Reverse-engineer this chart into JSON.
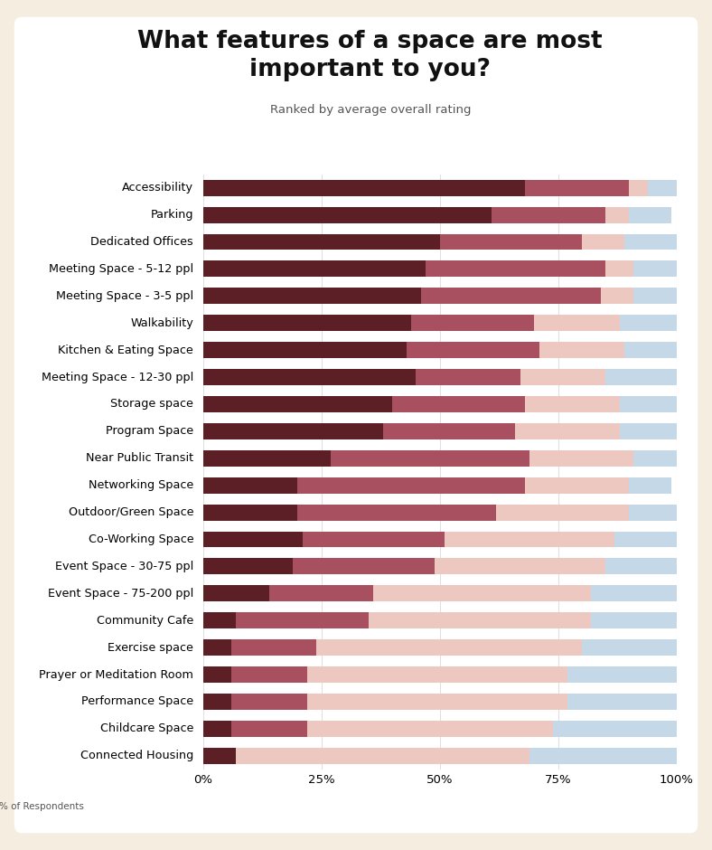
{
  "title": "What features of a space are most\nimportant to you?",
  "subtitle": "Ranked by average overall rating",
  "xlabel": "% of Respondents",
  "categories": [
    "Accessibility",
    "Parking",
    "Dedicated Offices",
    "Meeting Space - 5-12 ppl",
    "Meeting Space - 3-5 ppl",
    "Walkability",
    "Kitchen & Eating Space",
    "Meeting Space - 12-30 ppl",
    "Storage space",
    "Program Space",
    "Near Public Transit",
    "Networking Space",
    "Outdoor/Green Space",
    "Co-Working Space",
    "Event Space - 30-75 ppl",
    "Event Space - 75-200 ppl",
    "Community Cafe",
    "Exercise space",
    "Prayer or Meditation Room",
    "Performance Space",
    "Childcare Space",
    "Connected Housing"
  ],
  "very_important": [
    68,
    61,
    50,
    47,
    46,
    44,
    43,
    45,
    40,
    38,
    27,
    20,
    20,
    21,
    19,
    14,
    7,
    6,
    6,
    6,
    6,
    7
  ],
  "somewhat_important": [
    22,
    24,
    30,
    38,
    38,
    26,
    28,
    22,
    28,
    28,
    42,
    48,
    42,
    30,
    30,
    22,
    28,
    18,
    16,
    16,
    16,
    0
  ],
  "not_important": [
    4,
    5,
    9,
    6,
    7,
    18,
    18,
    18,
    20,
    22,
    22,
    22,
    28,
    36,
    36,
    46,
    47,
    56,
    55,
    55,
    52,
    62
  ],
  "na": [
    6,
    9,
    11,
    9,
    9,
    12,
    11,
    15,
    12,
    12,
    9,
    9,
    10,
    13,
    15,
    18,
    18,
    20,
    23,
    23,
    26,
    31
  ],
  "color_very": "#5C1F26",
  "color_somewhat": "#A85060",
  "color_not": "#ECC8C0",
  "color_na": "#C5D8E8",
  "bg_outer": "#F5EDE0",
  "bg_inner": "#FFFFFF",
  "bar_height": 0.6
}
